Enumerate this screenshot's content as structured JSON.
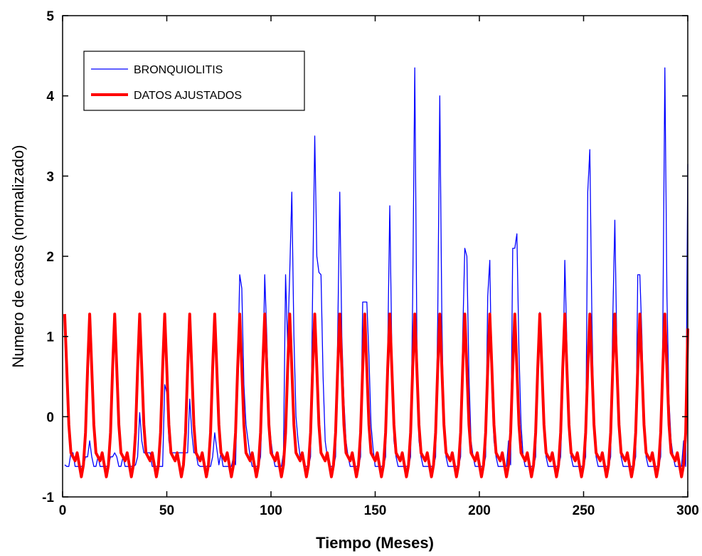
{
  "chart_data": {
    "type": "line",
    "xlabel": "Tiempo (Meses)",
    "ylabel": "Numero de casos (normalizado)",
    "xlim": [
      0,
      300
    ],
    "xticks": [
      0,
      50,
      100,
      150,
      200,
      250,
      300
    ],
    "ylim": [
      -1,
      5
    ],
    "yticks": [
      -1,
      0,
      1,
      2,
      3,
      4,
      5
    ],
    "legend": "upper left",
    "x": [
      1,
      2,
      3,
      4,
      5,
      6,
      7,
      8,
      9,
      10,
      11,
      12,
      13,
      14,
      15,
      16,
      17,
      18,
      19,
      20,
      21,
      22,
      23,
      24,
      25,
      26,
      27,
      28,
      29,
      30,
      31,
      32,
      33,
      34,
      35,
      36,
      37,
      38,
      39,
      40,
      41,
      42,
      43,
      44,
      45,
      46,
      47,
      48,
      49,
      50,
      51,
      52,
      53,
      54,
      55,
      56,
      57,
      58,
      59,
      60,
      61,
      62,
      63,
      64,
      65,
      66,
      67,
      68,
      69,
      70,
      71,
      72,
      73,
      74,
      75,
      76,
      77,
      78,
      79,
      80,
      81,
      82,
      83,
      84,
      85,
      86,
      87,
      88,
      89,
      90,
      91,
      92,
      93,
      94,
      95,
      96,
      97,
      98,
      99,
      100,
      101,
      102,
      103,
      104,
      105,
      106,
      107,
      108,
      109,
      110,
      111,
      112,
      113,
      114,
      115,
      116,
      117,
      118,
      119,
      120,
      121,
      122,
      123,
      124,
      125,
      126,
      127,
      128,
      129,
      130,
      131,
      132,
      133,
      134,
      135,
      136,
      137,
      138,
      139,
      140,
      141,
      142,
      143,
      144,
      145,
      146,
      147,
      148,
      149,
      150,
      151,
      152,
      153,
      154,
      155,
      156,
      157,
      158,
      159,
      160,
      161,
      162,
      163,
      164,
      165,
      166,
      167,
      168,
      169,
      170,
      171,
      172,
      173,
      174,
      175,
      176,
      177,
      178,
      179,
      180,
      181,
      182,
      183,
      184,
      185,
      186,
      187,
      188,
      189,
      190,
      191,
      192,
      193,
      194,
      195,
      196,
      197,
      198,
      199,
      200,
      201,
      202,
      203,
      204,
      205,
      206,
      207,
      208,
      209,
      210,
      211,
      212,
      213,
      214,
      215,
      216,
      217,
      218,
      219,
      220,
      221,
      222,
      223,
      224,
      225,
      226,
      227,
      228,
      229,
      230,
      231,
      232,
      233,
      234,
      235,
      236,
      237,
      238,
      239,
      240,
      241,
      242,
      243,
      244,
      245,
      246,
      247,
      248,
      249,
      250,
      251,
      252,
      253,
      254,
      255,
      256,
      257,
      258,
      259,
      260,
      261,
      262,
      263,
      264,
      265,
      266,
      267,
      268,
      269,
      270,
      271,
      272,
      273,
      274,
      275,
      276,
      277,
      278,
      279,
      280,
      281,
      282,
      283,
      284,
      285,
      286,
      287,
      288,
      289,
      290,
      291,
      292,
      293,
      294,
      295,
      296,
      297,
      298,
      299,
      300
    ],
    "series": [
      {
        "name": "BRONQUIOLITIS",
        "color": "#0000ff",
        "width": 1.3,
        "values": [
          -0.6,
          -0.62,
          -0.62,
          -0.45,
          -0.45,
          -0.62,
          -0.62,
          -0.62,
          -0.62,
          -0.62,
          -0.5,
          -0.5,
          -0.3,
          -0.5,
          -0.62,
          -0.62,
          -0.5,
          -0.62,
          -0.62,
          -0.62,
          -0.62,
          -0.62,
          -0.5,
          -0.5,
          -0.45,
          -0.5,
          -0.62,
          -0.62,
          -0.5,
          -0.62,
          -0.62,
          -0.62,
          -0.62,
          -0.62,
          -0.6,
          -0.5,
          0.05,
          -0.3,
          -0.45,
          -0.45,
          -0.45,
          -0.45,
          -0.62,
          -0.62,
          -0.62,
          -0.62,
          -0.62,
          -0.62,
          0.4,
          0.3,
          -0.3,
          -0.45,
          -0.45,
          -0.45,
          -0.45,
          -0.45,
          -0.45,
          -0.45,
          -0.45,
          -0.45,
          0.22,
          -0.2,
          -0.45,
          -0.45,
          -0.6,
          -0.62,
          -0.62,
          -0.62,
          -0.62,
          -0.62,
          -0.62,
          -0.5,
          -0.2,
          -0.4,
          -0.6,
          -0.45,
          -0.62,
          -0.62,
          -0.62,
          -0.62,
          -0.62,
          -0.5,
          -0.6,
          0.5,
          1.77,
          1.6,
          0.4,
          -0.1,
          -0.3,
          -0.5,
          -0.62,
          -0.62,
          -0.62,
          -0.62,
          -0.5,
          0.3,
          1.77,
          1.0,
          0,
          -0.3,
          -0.5,
          -0.62,
          -0.62,
          -0.62,
          -0.62,
          -0.45,
          1.77,
          0.9,
          1.8,
          2.8,
          1.0,
          0,
          -0.3,
          -0.5,
          -0.5,
          -0.62,
          -0.62,
          -0.62,
          -0.5,
          1.6,
          3.5,
          2.0,
          1.8,
          1.77,
          0.5,
          -0.3,
          -0.5,
          -0.62,
          -0.62,
          -0.62,
          -0.5,
          1.0,
          2.8,
          1.0,
          0.2,
          -0.3,
          -0.5,
          -0.62,
          -0.62,
          -0.62,
          -0.62,
          -0.62,
          -0.5,
          1.43,
          1.43,
          1.43,
          0.75,
          -0.1,
          -0.4,
          -0.62,
          -0.62,
          -0.62,
          -0.62,
          -0.62,
          -0.5,
          0.8,
          2.63,
          0.8,
          -0.3,
          -0.5,
          -0.62,
          -0.62,
          -0.62,
          -0.62,
          -0.62,
          -0.62,
          -0.5,
          1.5,
          4.35,
          1.0,
          -0.3,
          -0.5,
          -0.62,
          -0.62,
          -0.62,
          -0.62,
          -0.62,
          -0.62,
          -0.5,
          1.2,
          4.0,
          1.2,
          -0.2,
          -0.5,
          -0.62,
          -0.62,
          -0.62,
          -0.62,
          -0.62,
          -0.62,
          -0.5,
          1.0,
          2.1,
          2.0,
          0.5,
          -0.3,
          -0.5,
          -0.62,
          -0.62,
          -0.62,
          -0.62,
          -0.62,
          -0.5,
          1.5,
          1.95,
          0.3,
          -0.3,
          -0.5,
          -0.62,
          -0.62,
          -0.62,
          -0.62,
          -0.62,
          -0.3,
          -0.6,
          2.1,
          2.1,
          2.28,
          0.8,
          -0.1,
          -0.5,
          -0.62,
          -0.62,
          -0.62,
          -0.62,
          -0.62,
          -0.5,
          0.7,
          1.3,
          0.7,
          -0.2,
          -0.5,
          -0.62,
          -0.62,
          -0.62,
          -0.62,
          -0.62,
          -0.62,
          -0.5,
          0.3,
          1.95,
          0.9,
          -0.1,
          -0.5,
          -0.62,
          -0.62,
          -0.62,
          -0.62,
          -0.62,
          -0.62,
          -0.5,
          2.8,
          3.33,
          1.2,
          -0.1,
          -0.5,
          -0.62,
          -0.62,
          -0.62,
          -0.62,
          -0.62,
          -0.62,
          -0.5,
          1.2,
          2.45,
          0.8,
          -0.2,
          -0.5,
          -0.62,
          -0.62,
          -0.62,
          -0.62,
          -0.62,
          -0.62,
          -0.5,
          1.77,
          1.77,
          1.0,
          -0.1,
          -0.5,
          -0.62,
          -0.62,
          -0.62,
          -0.62,
          -0.62,
          -0.62,
          -0.5,
          1.0,
          4.35,
          1.5,
          0.2,
          -0.3,
          -0.5,
          -0.62,
          -0.62,
          -0.62,
          -0.62,
          -0.3,
          -0.62,
          3.15
        ]
      },
      {
        "name": "DATOS AJUSTADOS",
        "color": "#ff0000",
        "width": 4,
        "values": [
          1.28,
          0.6,
          -0.1,
          -0.45,
          -0.5,
          -0.55,
          -0.45,
          -0.6,
          -0.75,
          -0.6,
          -0.2,
          0.6,
          1.28,
          0.6,
          -0.1,
          -0.45,
          -0.5,
          -0.55,
          -0.45,
          -0.6,
          -0.75,
          -0.6,
          -0.2,
          0.6,
          1.28,
          0.6,
          -0.1,
          -0.45,
          -0.5,
          -0.55,
          -0.45,
          -0.6,
          -0.75,
          -0.6,
          -0.2,
          0.6,
          1.28,
          0.6,
          -0.1,
          -0.45,
          -0.5,
          -0.55,
          -0.45,
          -0.6,
          -0.75,
          -0.6,
          -0.2,
          0.6,
          1.28,
          0.6,
          -0.1,
          -0.45,
          -0.5,
          -0.55,
          -0.45,
          -0.6,
          -0.75,
          -0.6,
          -0.2,
          0.6,
          1.28,
          0.6,
          -0.1,
          -0.45,
          -0.5,
          -0.55,
          -0.45,
          -0.6,
          -0.75,
          -0.6,
          -0.2,
          0.6,
          1.28,
          0.6,
          -0.1,
          -0.45,
          -0.5,
          -0.55,
          -0.45,
          -0.6,
          -0.75,
          -0.6,
          -0.2,
          0.6,
          1.28,
          0.6,
          -0.1,
          -0.45,
          -0.5,
          -0.55,
          -0.45,
          -0.6,
          -0.75,
          -0.6,
          -0.2,
          0.6,
          1.28,
          0.6,
          -0.1,
          -0.45,
          -0.5,
          -0.55,
          -0.45,
          -0.6,
          -0.75,
          -0.6,
          -0.2,
          0.6,
          1.28,
          0.6,
          -0.1,
          -0.45,
          -0.5,
          -0.55,
          -0.45,
          -0.6,
          -0.75,
          -0.6,
          -0.2,
          0.6,
          1.28,
          0.6,
          -0.1,
          -0.45,
          -0.5,
          -0.55,
          -0.45,
          -0.6,
          -0.75,
          -0.6,
          -0.2,
          0.6,
          1.28,
          0.6,
          -0.1,
          -0.45,
          -0.5,
          -0.55,
          -0.45,
          -0.6,
          -0.75,
          -0.6,
          -0.2,
          0.6,
          1.28,
          0.6,
          -0.1,
          -0.45,
          -0.5,
          -0.55,
          -0.45,
          -0.6,
          -0.75,
          -0.6,
          -0.2,
          0.6,
          1.28,
          0.6,
          -0.1,
          -0.45,
          -0.5,
          -0.55,
          -0.45,
          -0.6,
          -0.75,
          -0.6,
          -0.2,
          0.6,
          1.28,
          0.6,
          -0.1,
          -0.45,
          -0.5,
          -0.55,
          -0.45,
          -0.6,
          -0.75,
          -0.6,
          -0.2,
          0.6,
          1.28,
          0.6,
          -0.1,
          -0.45,
          -0.5,
          -0.55,
          -0.45,
          -0.6,
          -0.75,
          -0.6,
          -0.2,
          0.6,
          1.28,
          0.6,
          -0.1,
          -0.45,
          -0.5,
          -0.55,
          -0.45,
          -0.6,
          -0.75,
          -0.6,
          -0.2,
          0.6,
          1.28,
          0.6,
          -0.1,
          -0.45,
          -0.5,
          -0.55,
          -0.45,
          -0.6,
          -0.75,
          -0.6,
          -0.2,
          0.6,
          1.28,
          0.6,
          -0.1,
          -0.45,
          -0.5,
          -0.55,
          -0.45,
          -0.6,
          -0.75,
          -0.6,
          -0.2,
          0.6,
          1.28,
          0.6,
          -0.1,
          -0.45,
          -0.5,
          -0.55,
          -0.45,
          -0.6,
          -0.75,
          -0.6,
          -0.2,
          0.6,
          1.28,
          0.6,
          -0.1,
          -0.45,
          -0.5,
          -0.55,
          -0.45,
          -0.6,
          -0.75,
          -0.6,
          -0.2,
          0.6,
          1.28,
          0.6,
          -0.1,
          -0.45,
          -0.5,
          -0.55,
          -0.45,
          -0.6,
          -0.75,
          -0.6,
          -0.2,
          0.6,
          1.28,
          0.6,
          -0.1,
          -0.45,
          -0.5,
          -0.55,
          -0.45,
          -0.6,
          -0.75,
          -0.6,
          -0.2,
          0.6,
          1.28,
          0.6,
          -0.1,
          -0.45,
          -0.5,
          -0.55,
          -0.45,
          -0.6,
          -0.75,
          -0.6,
          -0.2,
          0.6,
          1.28,
          0.6,
          -0.1,
          -0.45,
          -0.5,
          -0.55,
          -0.45,
          -0.6,
          -0.75,
          -0.6,
          -0.2,
          1.1
        ]
      }
    ]
  }
}
